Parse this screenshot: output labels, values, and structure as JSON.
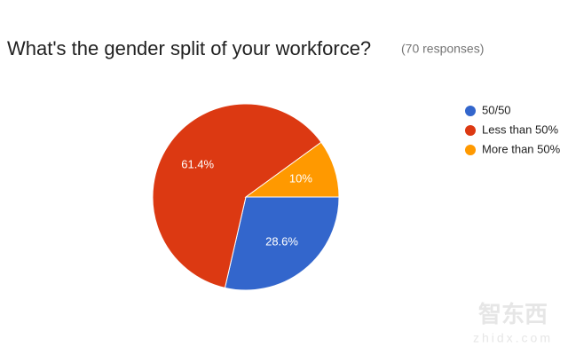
{
  "chart_data": {
    "type": "pie",
    "title": "What's the gender split of your workforce?",
    "subtitle": "(70 responses)",
    "categories": [
      "50/50",
      "Less than 50%",
      "More than 50%"
    ],
    "values": [
      28.6,
      61.4,
      10
    ],
    "value_labels": [
      "28.6%",
      "61.4%",
      "10%"
    ],
    "colors": [
      "#3366cc",
      "#dc3912",
      "#ff9900"
    ],
    "legend": "right",
    "watermark": "智东西",
    "watermark_url": "zhidx.com"
  }
}
